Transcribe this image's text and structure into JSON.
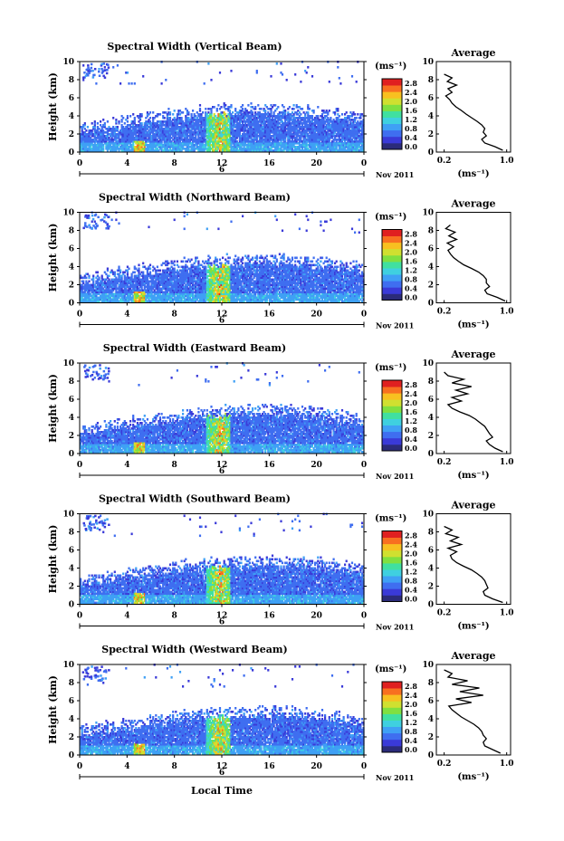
{
  "chart_data": {
    "type": "heatmap",
    "xlabel": "Local Time",
    "date_label": "6",
    "month_label": "Nov 2011",
    "xlim": [
      0,
      24
    ],
    "x_ticks": [
      "0",
      "4",
      "8",
      "12",
      "16",
      "20",
      "0"
    ],
    "ylabel": "Height (km)",
    "ylim": [
      0,
      10
    ],
    "y_ticks": [
      "0",
      "2",
      "4",
      "6",
      "8",
      "10"
    ],
    "colorbar": {
      "unit": "(ms⁻¹)",
      "ticks": [
        "0.0",
        "0.4",
        "0.8",
        "1.2",
        "1.6",
        "2.0",
        "2.4",
        "2.8"
      ],
      "range": [
        0,
        3.0
      ],
      "colors": [
        "#2b2b7a",
        "#3a3ad8",
        "#3f6ef0",
        "#3fa0f5",
        "#3fd0e0",
        "#40e0a0",
        "#80e040",
        "#d0e030",
        "#f8c020",
        "#f87020",
        "#e02020"
      ]
    },
    "profile": {
      "title": "Average",
      "xlabel": "(ms⁻¹)",
      "xlim": [
        0.1,
        1.05
      ],
      "x_ticks": [
        "0.2",
        "1.0"
      ],
      "y_ticks": [
        "0",
        "2",
        "4",
        "6",
        "8",
        "10"
      ]
    },
    "panels": [
      {
        "title": "Spectral Width (Vertical Beam)",
        "profile_heights": [
          0.2,
          0.6,
          1.0,
          1.4,
          1.8,
          2.2,
          2.6,
          3.0,
          3.4,
          3.8,
          4.2,
          4.6,
          5.0,
          5.4,
          5.8,
          6.2,
          6.6,
          7.0,
          7.4,
          7.8,
          8.2,
          8.6
        ],
        "profile_values": [
          0.95,
          0.85,
          0.72,
          0.68,
          0.74,
          0.7,
          0.72,
          0.68,
          0.62,
          0.55,
          0.48,
          0.42,
          0.35,
          0.3,
          0.27,
          0.22,
          0.3,
          0.25,
          0.36,
          0.24,
          0.3,
          0.2
        ]
      },
      {
        "title": "Spectral Width (Northward Beam)",
        "profile_heights": [
          0.2,
          0.6,
          1.0,
          1.4,
          1.8,
          2.2,
          2.6,
          3.0,
          3.4,
          3.8,
          4.2,
          4.6,
          5.0,
          5.4,
          5.8,
          6.2,
          6.6,
          7.0,
          7.4,
          7.8,
          8.2,
          8.6
        ],
        "profile_values": [
          0.98,
          0.88,
          0.75,
          0.72,
          0.78,
          0.74,
          0.74,
          0.7,
          0.64,
          0.55,
          0.45,
          0.38,
          0.32,
          0.28,
          0.25,
          0.32,
          0.24,
          0.36,
          0.26,
          0.34,
          0.22,
          0.28
        ]
      },
      {
        "title": "Spectral Width (Eastward Beam)",
        "profile_heights": [
          0.2,
          0.6,
          1.0,
          1.4,
          1.8,
          2.2,
          2.6,
          3.0,
          3.4,
          3.8,
          4.2,
          4.6,
          5.0,
          5.4,
          5.8,
          6.2,
          6.6,
          7.0,
          7.4,
          7.8,
          8.2,
          8.6,
          9.0
        ],
        "profile_values": [
          0.95,
          0.85,
          0.78,
          0.74,
          0.82,
          0.78,
          0.75,
          0.72,
          0.66,
          0.6,
          0.52,
          0.4,
          0.3,
          0.25,
          0.42,
          0.3,
          0.5,
          0.35,
          0.55,
          0.3,
          0.45,
          0.25,
          0.2
        ]
      },
      {
        "title": "Spectral Width (Southward Beam)",
        "profile_heights": [
          0.2,
          0.6,
          1.0,
          1.4,
          1.8,
          2.2,
          2.6,
          3.0,
          3.4,
          3.8,
          4.2,
          4.6,
          5.0,
          5.4,
          5.8,
          6.2,
          6.6,
          7.0,
          7.4,
          7.8,
          8.2,
          8.6
        ],
        "profile_values": [
          0.95,
          0.82,
          0.72,
          0.7,
          0.76,
          0.74,
          0.72,
          0.68,
          0.62,
          0.55,
          0.45,
          0.36,
          0.3,
          0.28,
          0.36,
          0.25,
          0.42,
          0.28,
          0.38,
          0.22,
          0.3,
          0.2
        ]
      },
      {
        "title": "Spectral Width (Westward Beam)",
        "profile_heights": [
          0.2,
          0.6,
          1.0,
          1.4,
          1.8,
          2.2,
          2.6,
          3.0,
          3.4,
          3.8,
          4.2,
          4.6,
          5.0,
          5.4,
          5.8,
          6.2,
          6.6,
          7.0,
          7.4,
          7.8,
          8.2,
          8.6,
          9.0,
          9.4
        ],
        "profile_values": [
          0.92,
          0.82,
          0.72,
          0.7,
          0.74,
          0.7,
          0.68,
          0.64,
          0.58,
          0.5,
          0.42,
          0.36,
          0.3,
          0.26,
          0.55,
          0.35,
          0.7,
          0.4,
          0.65,
          0.3,
          0.5,
          0.25,
          0.3,
          0.2
        ]
      }
    ]
  }
}
